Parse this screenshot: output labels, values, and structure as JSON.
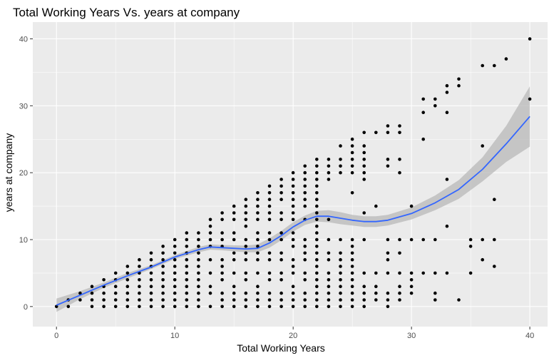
{
  "chart_data": {
    "type": "scatter",
    "title": "Total Working Years Vs. years at company",
    "xlabel": "Total Working Years",
    "ylabel": "years at company",
    "xlim": [
      -2,
      41.5
    ],
    "ylim": [
      -3,
      42.5
    ],
    "x_ticks": [
      "0",
      "10",
      "20",
      "30",
      "40"
    ],
    "y_ticks": [
      "0",
      "10",
      "20",
      "30",
      "40"
    ],
    "grid": true,
    "legend": "none",
    "colors": {
      "panel": "#ebebeb",
      "grid": "#ffffff",
      "point": "#000000",
      "smooth_line": "#3366ff",
      "confidence_band": "#b8b8b8"
    },
    "points": [
      [
        0,
        0
      ],
      [
        1,
        0
      ],
      [
        1,
        1
      ],
      [
        2,
        1
      ],
      [
        2,
        2
      ],
      [
        3,
        0
      ],
      [
        3,
        1
      ],
      [
        3,
        2
      ],
      [
        3,
        3
      ],
      [
        4,
        0
      ],
      [
        4,
        1
      ],
      [
        4,
        2
      ],
      [
        4,
        3
      ],
      [
        4,
        4
      ],
      [
        5,
        0
      ],
      [
        5,
        1
      ],
      [
        5,
        2
      ],
      [
        5,
        3
      ],
      [
        5,
        4
      ],
      [
        5,
        5
      ],
      [
        6,
        0
      ],
      [
        6,
        1
      ],
      [
        6,
        2
      ],
      [
        6,
        3
      ],
      [
        6,
        4
      ],
      [
        6,
        5
      ],
      [
        6,
        6
      ],
      [
        7,
        0
      ],
      [
        7,
        1
      ],
      [
        7,
        2
      ],
      [
        7,
        3
      ],
      [
        7,
        4
      ],
      [
        7,
        5
      ],
      [
        7,
        6
      ],
      [
        7,
        7
      ],
      [
        8,
        0
      ],
      [
        8,
        1
      ],
      [
        8,
        2
      ],
      [
        8,
        3
      ],
      [
        8,
        4
      ],
      [
        8,
        5
      ],
      [
        8,
        6
      ],
      [
        8,
        7
      ],
      [
        8,
        8
      ],
      [
        9,
        0
      ],
      [
        9,
        1
      ],
      [
        9,
        2
      ],
      [
        9,
        3
      ],
      [
        9,
        4
      ],
      [
        9,
        5
      ],
      [
        9,
        6
      ],
      [
        9,
        7
      ],
      [
        9,
        8
      ],
      [
        9,
        9
      ],
      [
        10,
        0
      ],
      [
        10,
        1
      ],
      [
        10,
        2
      ],
      [
        10,
        3
      ],
      [
        10,
        4
      ],
      [
        10,
        5
      ],
      [
        10,
        6
      ],
      [
        10,
        7
      ],
      [
        10,
        8
      ],
      [
        10,
        9
      ],
      [
        10,
        10
      ],
      [
        11,
        0
      ],
      [
        11,
        1
      ],
      [
        11,
        2
      ],
      [
        11,
        3
      ],
      [
        11,
        4
      ],
      [
        11,
        5
      ],
      [
        11,
        6
      ],
      [
        11,
        7
      ],
      [
        11,
        8
      ],
      [
        11,
        9
      ],
      [
        11,
        10
      ],
      [
        11,
        11
      ],
      [
        12,
        0
      ],
      [
        12,
        1
      ],
      [
        12,
        2
      ],
      [
        12,
        3
      ],
      [
        12,
        4
      ],
      [
        12,
        5
      ],
      [
        12,
        6
      ],
      [
        12,
        7
      ],
      [
        12,
        8
      ],
      [
        12,
        9
      ],
      [
        12,
        10
      ],
      [
        12,
        11
      ],
      [
        13,
        0
      ],
      [
        13,
        2
      ],
      [
        13,
        3
      ],
      [
        13,
        5
      ],
      [
        13,
        7
      ],
      [
        13,
        9
      ],
      [
        13,
        10
      ],
      [
        13,
        11
      ],
      [
        13,
        12
      ],
      [
        13,
        13
      ],
      [
        14,
        0
      ],
      [
        14,
        1
      ],
      [
        14,
        2
      ],
      [
        14,
        4
      ],
      [
        14,
        5
      ],
      [
        14,
        6
      ],
      [
        14,
        7
      ],
      [
        14,
        9
      ],
      [
        14,
        10
      ],
      [
        14,
        11
      ],
      [
        14,
        13
      ],
      [
        14,
        14
      ],
      [
        15,
        0
      ],
      [
        15,
        1
      ],
      [
        15,
        2
      ],
      [
        15,
        3
      ],
      [
        15,
        5
      ],
      [
        15,
        7
      ],
      [
        15,
        8
      ],
      [
        15,
        10
      ],
      [
        15,
        11
      ],
      [
        15,
        13
      ],
      [
        15,
        14
      ],
      [
        15,
        15
      ],
      [
        16,
        0
      ],
      [
        16,
        1
      ],
      [
        16,
        2
      ],
      [
        16,
        4
      ],
      [
        16,
        5
      ],
      [
        16,
        7
      ],
      [
        16,
        8
      ],
      [
        16,
        9
      ],
      [
        16,
        10
      ],
      [
        16,
        12
      ],
      [
        16,
        13
      ],
      [
        16,
        14
      ],
      [
        16,
        15
      ],
      [
        16,
        16
      ],
      [
        17,
        0
      ],
      [
        17,
        1
      ],
      [
        17,
        2
      ],
      [
        17,
        3
      ],
      [
        17,
        5
      ],
      [
        17,
        7
      ],
      [
        17,
        8
      ],
      [
        17,
        9
      ],
      [
        17,
        10
      ],
      [
        17,
        11
      ],
      [
        17,
        13
      ],
      [
        17,
        14
      ],
      [
        17,
        15
      ],
      [
        17,
        16
      ],
      [
        17,
        17
      ],
      [
        18,
        0
      ],
      [
        18,
        1
      ],
      [
        18,
        2
      ],
      [
        18,
        4
      ],
      [
        18,
        5
      ],
      [
        18,
        7
      ],
      [
        18,
        8
      ],
      [
        18,
        10
      ],
      [
        18,
        11
      ],
      [
        18,
        13
      ],
      [
        18,
        14
      ],
      [
        18,
        15
      ],
      [
        18,
        16
      ],
      [
        18,
        17
      ],
      [
        18,
        18
      ],
      [
        19,
        0
      ],
      [
        19,
        1
      ],
      [
        19,
        2
      ],
      [
        19,
        4
      ],
      [
        19,
        5
      ],
      [
        19,
        7
      ],
      [
        19,
        8
      ],
      [
        19,
        10
      ],
      [
        19,
        11
      ],
      [
        19,
        13
      ],
      [
        19,
        14
      ],
      [
        19,
        16
      ],
      [
        19,
        17
      ],
      [
        19,
        18
      ],
      [
        19,
        19
      ],
      [
        20,
        0
      ],
      [
        20,
        1
      ],
      [
        20,
        2
      ],
      [
        20,
        3
      ],
      [
        20,
        5
      ],
      [
        20,
        6
      ],
      [
        20,
        7
      ],
      [
        20,
        9
      ],
      [
        20,
        10
      ],
      [
        20,
        11
      ],
      [
        20,
        13
      ],
      [
        20,
        14
      ],
      [
        20,
        15
      ],
      [
        20,
        16
      ],
      [
        20,
        17
      ],
      [
        20,
        18
      ],
      [
        20,
        19
      ],
      [
        20,
        20
      ],
      [
        21,
        0
      ],
      [
        21,
        1
      ],
      [
        21,
        2
      ],
      [
        21,
        4
      ],
      [
        21,
        5
      ],
      [
        21,
        7
      ],
      [
        21,
        8
      ],
      [
        21,
        9
      ],
      [
        21,
        10
      ],
      [
        21,
        13
      ],
      [
        21,
        15
      ],
      [
        21,
        16
      ],
      [
        21,
        17
      ],
      [
        21,
        18
      ],
      [
        21,
        19
      ],
      [
        21,
        20
      ],
      [
        21,
        21
      ],
      [
        22,
        0
      ],
      [
        22,
        1
      ],
      [
        22,
        2
      ],
      [
        22,
        3
      ],
      [
        22,
        4
      ],
      [
        22,
        5
      ],
      [
        22,
        6
      ],
      [
        22,
        7
      ],
      [
        22,
        8
      ],
      [
        22,
        9
      ],
      [
        22,
        10
      ],
      [
        22,
        11
      ],
      [
        22,
        12
      ],
      [
        22,
        13
      ],
      [
        22,
        14
      ],
      [
        22,
        15
      ],
      [
        22,
        16
      ],
      [
        22,
        17
      ],
      [
        22,
        18
      ],
      [
        22,
        19
      ],
      [
        22,
        20
      ],
      [
        22,
        21
      ],
      [
        22,
        22
      ],
      [
        23,
        0
      ],
      [
        23,
        1
      ],
      [
        23,
        2
      ],
      [
        23,
        3
      ],
      [
        23,
        4
      ],
      [
        23,
        5
      ],
      [
        23,
        7
      ],
      [
        23,
        8
      ],
      [
        23,
        10
      ],
      [
        23,
        13
      ],
      [
        23,
        19
      ],
      [
        23,
        20
      ],
      [
        23,
        21
      ],
      [
        23,
        22
      ],
      [
        24,
        0
      ],
      [
        24,
        1
      ],
      [
        24,
        2
      ],
      [
        24,
        3
      ],
      [
        24,
        4
      ],
      [
        24,
        5
      ],
      [
        24,
        6
      ],
      [
        24,
        7
      ],
      [
        24,
        8
      ],
      [
        24,
        10
      ],
      [
        24,
        20
      ],
      [
        24,
        21
      ],
      [
        24,
        22
      ],
      [
        24,
        24
      ],
      [
        25,
        0
      ],
      [
        25,
        1
      ],
      [
        25,
        2
      ],
      [
        25,
        3
      ],
      [
        25,
        4
      ],
      [
        25,
        5
      ],
      [
        25,
        6
      ],
      [
        25,
        7
      ],
      [
        25,
        8
      ],
      [
        25,
        9
      ],
      [
        25,
        10
      ],
      [
        25,
        17
      ],
      [
        25,
        20
      ],
      [
        25,
        21
      ],
      [
        25,
        22
      ],
      [
        25,
        23
      ],
      [
        25,
        24
      ],
      [
        25,
        25
      ],
      [
        26,
        0
      ],
      [
        26,
        1
      ],
      [
        26,
        2
      ],
      [
        26,
        3
      ],
      [
        26,
        5
      ],
      [
        26,
        10
      ],
      [
        26,
        14
      ],
      [
        26,
        19
      ],
      [
        26,
        20
      ],
      [
        26,
        21
      ],
      [
        26,
        22
      ],
      [
        26,
        23
      ],
      [
        26,
        24
      ],
      [
        26,
        26
      ],
      [
        27,
        1
      ],
      [
        27,
        2
      ],
      [
        27,
        3
      ],
      [
        27,
        5
      ],
      [
        27,
        15
      ],
      [
        27,
        26
      ],
      [
        28,
        0
      ],
      [
        28,
        1
      ],
      [
        28,
        2
      ],
      [
        28,
        5
      ],
      [
        28,
        7
      ],
      [
        28,
        8
      ],
      [
        28,
        10
      ],
      [
        28,
        21
      ],
      [
        28,
        22
      ],
      [
        28,
        26
      ],
      [
        28,
        27
      ],
      [
        29,
        1
      ],
      [
        29,
        2
      ],
      [
        29,
        3
      ],
      [
        29,
        5
      ],
      [
        29,
        8
      ],
      [
        29,
        10
      ],
      [
        29,
        20
      ],
      [
        29,
        22
      ],
      [
        29,
        26
      ],
      [
        29,
        27
      ],
      [
        30,
        2
      ],
      [
        30,
        3
      ],
      [
        30,
        4
      ],
      [
        30,
        5
      ],
      [
        30,
        10
      ],
      [
        30,
        15
      ],
      [
        31,
        5
      ],
      [
        31,
        10
      ],
      [
        31,
        25
      ],
      [
        31,
        29
      ],
      [
        31,
        31
      ],
      [
        32,
        1
      ],
      [
        32,
        2
      ],
      [
        32,
        5
      ],
      [
        32,
        10
      ],
      [
        32,
        30
      ],
      [
        32,
        31
      ],
      [
        33,
        5
      ],
      [
        33,
        12
      ],
      [
        33,
        19
      ],
      [
        33,
        29
      ],
      [
        33,
        32
      ],
      [
        33,
        33
      ],
      [
        34,
        1
      ],
      [
        34,
        33
      ],
      [
        34,
        34
      ],
      [
        35,
        5
      ],
      [
        35,
        9
      ],
      [
        35,
        10
      ],
      [
        36,
        7
      ],
      [
        36,
        10
      ],
      [
        36,
        24
      ],
      [
        36,
        36
      ],
      [
        37,
        6
      ],
      [
        37,
        10
      ],
      [
        37,
        16
      ],
      [
        37,
        36
      ],
      [
        38,
        37
      ],
      [
        40,
        31
      ],
      [
        40,
        40
      ]
    ],
    "smooth": {
      "x": [
        0,
        2,
        4,
        6,
        8,
        10,
        12,
        13,
        14,
        16,
        17,
        18,
        19,
        20,
        21,
        22,
        23,
        24,
        25,
        26,
        27,
        28,
        30,
        32,
        34,
        36,
        38,
        40
      ],
      "y": [
        0.2,
        1.7,
        3.2,
        4.6,
        5.9,
        7.4,
        8.5,
        8.9,
        8.8,
        8.6,
        8.7,
        9.5,
        10.6,
        11.9,
        12.9,
        13.5,
        13.5,
        13.2,
        12.9,
        12.7,
        12.7,
        12.9,
        13.9,
        15.5,
        17.5,
        20.5,
        24.3,
        28.4
      ],
      "lower": [
        -0.8,
        1.1,
        2.8,
        4.2,
        5.6,
        7.1,
        8.1,
        8.5,
        8.4,
        8.1,
        8.1,
        8.8,
        9.9,
        11.2,
        12.2,
        12.7,
        12.6,
        12.3,
        12.1,
        11.9,
        11.9,
        12.1,
        13.0,
        14.4,
        16.1,
        18.7,
        21.6,
        23.9
      ],
      "upper": [
        1.2,
        2.3,
        3.6,
        5.0,
        6.2,
        7.7,
        8.9,
        9.3,
        9.2,
        9.1,
        9.3,
        10.2,
        11.3,
        12.6,
        13.6,
        14.3,
        14.4,
        14.1,
        13.7,
        13.5,
        13.5,
        13.7,
        14.8,
        16.6,
        18.9,
        22.3,
        27.0,
        32.9
      ]
    }
  }
}
